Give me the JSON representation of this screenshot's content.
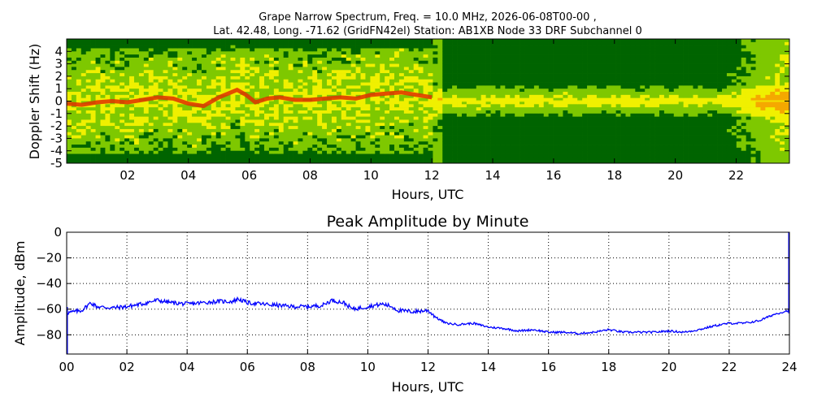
{
  "figure": {
    "title_line1": "Grape Narrow Spectrum, Freq. = 10.0 MHz, 2026-06-08T00-00 ,",
    "title_line2": "Lat.  42.48, Long. -71.62 (GridFN42el) Station: AB1XB Node 33 DRF Subchannel 0"
  },
  "colors": {
    "heat_low": "#006400",
    "heat_mid": "#7ec800",
    "heat_high": "#f0f000",
    "heat_peak": "#e03000",
    "line": "#0000ff",
    "grid": "#000000"
  },
  "chart_data": [
    {
      "type": "heatmap",
      "title": "",
      "xlabel": "Hours, UTC",
      "ylabel": "Doppler Shift (Hz)",
      "xlim": [
        0,
        23.75
      ],
      "ylim": [
        -5,
        5
      ],
      "x_ticks": [
        2,
        4,
        6,
        8,
        10,
        12,
        14,
        16,
        18,
        20,
        22
      ],
      "x_tick_labels": [
        "02",
        "04",
        "06",
        "08",
        "10",
        "12",
        "14",
        "16",
        "18",
        "20",
        "22"
      ],
      "y_ticks": [
        4,
        3,
        2,
        1,
        0,
        -1,
        -2,
        -3,
        -4,
        -5
      ],
      "y_tick_labels": [
        "4",
        "3",
        "2",
        "1",
        "0",
        "-1",
        "-2",
        "-3",
        "-4",
        "-5"
      ],
      "peak_trace": {
        "x": [
          0.0,
          0.5,
          1.0,
          1.5,
          2.0,
          2.5,
          3.0,
          3.5,
          4.0,
          4.5,
          5.0,
          5.3,
          5.6,
          5.9,
          6.2,
          6.6,
          7.0,
          7.5,
          8.0,
          8.5,
          9.0,
          9.5,
          10.0,
          10.5,
          11.0,
          11.5,
          12.0
        ],
        "y": [
          -0.2,
          -0.3,
          -0.1,
          0.0,
          -0.1,
          0.1,
          0.3,
          0.2,
          -0.2,
          -0.4,
          0.3,
          0.6,
          0.9,
          0.5,
          -0.1,
          0.2,
          0.3,
          0.1,
          0.1,
          0.2,
          0.3,
          0.2,
          0.5,
          0.6,
          0.7,
          0.5,
          0.3
        ]
      }
    },
    {
      "type": "line",
      "title": "Peak Amplitude by Minute",
      "xlabel": "Hours, UTC",
      "ylabel": "Amplitude, dBm",
      "xlim": [
        0,
        24
      ],
      "ylim": [
        -95,
        0
      ],
      "grid": true,
      "x_ticks": [
        0,
        2,
        4,
        6,
        8,
        10,
        12,
        14,
        16,
        18,
        20,
        22,
        24
      ],
      "x_tick_labels": [
        "00",
        "02",
        "04",
        "06",
        "08",
        "10",
        "12",
        "14",
        "16",
        "18",
        "20",
        "22",
        "24"
      ],
      "y_ticks": [
        0,
        -20,
        -40,
        -60,
        -80
      ],
      "y_tick_labels": [
        "0",
        "−20",
        "−40",
        "−60",
        "−80"
      ],
      "series": [
        {
          "x": [
            0,
            0.5,
            0.8,
            1.0,
            1.5,
            2.0,
            2.5,
            3.0,
            3.5,
            4.0,
            4.5,
            5.0,
            5.5,
            5.7,
            6.0,
            6.5,
            7.0,
            7.5,
            8.0,
            8.5,
            8.8,
            9.2,
            9.5,
            10.0,
            10.5,
            10.8,
            11.0,
            11.5,
            12.0,
            12.3,
            12.6,
            13.0,
            13.5,
            14.0,
            14.5,
            15.0,
            15.5,
            16.0,
            16.5,
            17.0,
            17.5,
            18.0,
            18.5,
            19.0,
            19.5,
            20.0,
            20.5,
            21.0,
            21.5,
            22.0,
            22.5,
            23.0,
            23.5,
            23.97
          ],
          "y": [
            -63,
            -61,
            -55,
            -58,
            -59,
            -58,
            -56,
            -53,
            -55,
            -56,
            -55,
            -54,
            -54,
            -52,
            -55,
            -56,
            -57,
            -58,
            -58,
            -57,
            -53,
            -55,
            -60,
            -58,
            -56,
            -58,
            -61,
            -62,
            -61,
            -67,
            -71,
            -72,
            -71,
            -74,
            -75,
            -77,
            -76,
            -78,
            -78,
            -79,
            -78,
            -76,
            -78,
            -78,
            -78,
            -77,
            -78,
            -76,
            -73,
            -71,
            -71,
            -69,
            -64,
            -61
          ]
        }
      ]
    }
  ]
}
